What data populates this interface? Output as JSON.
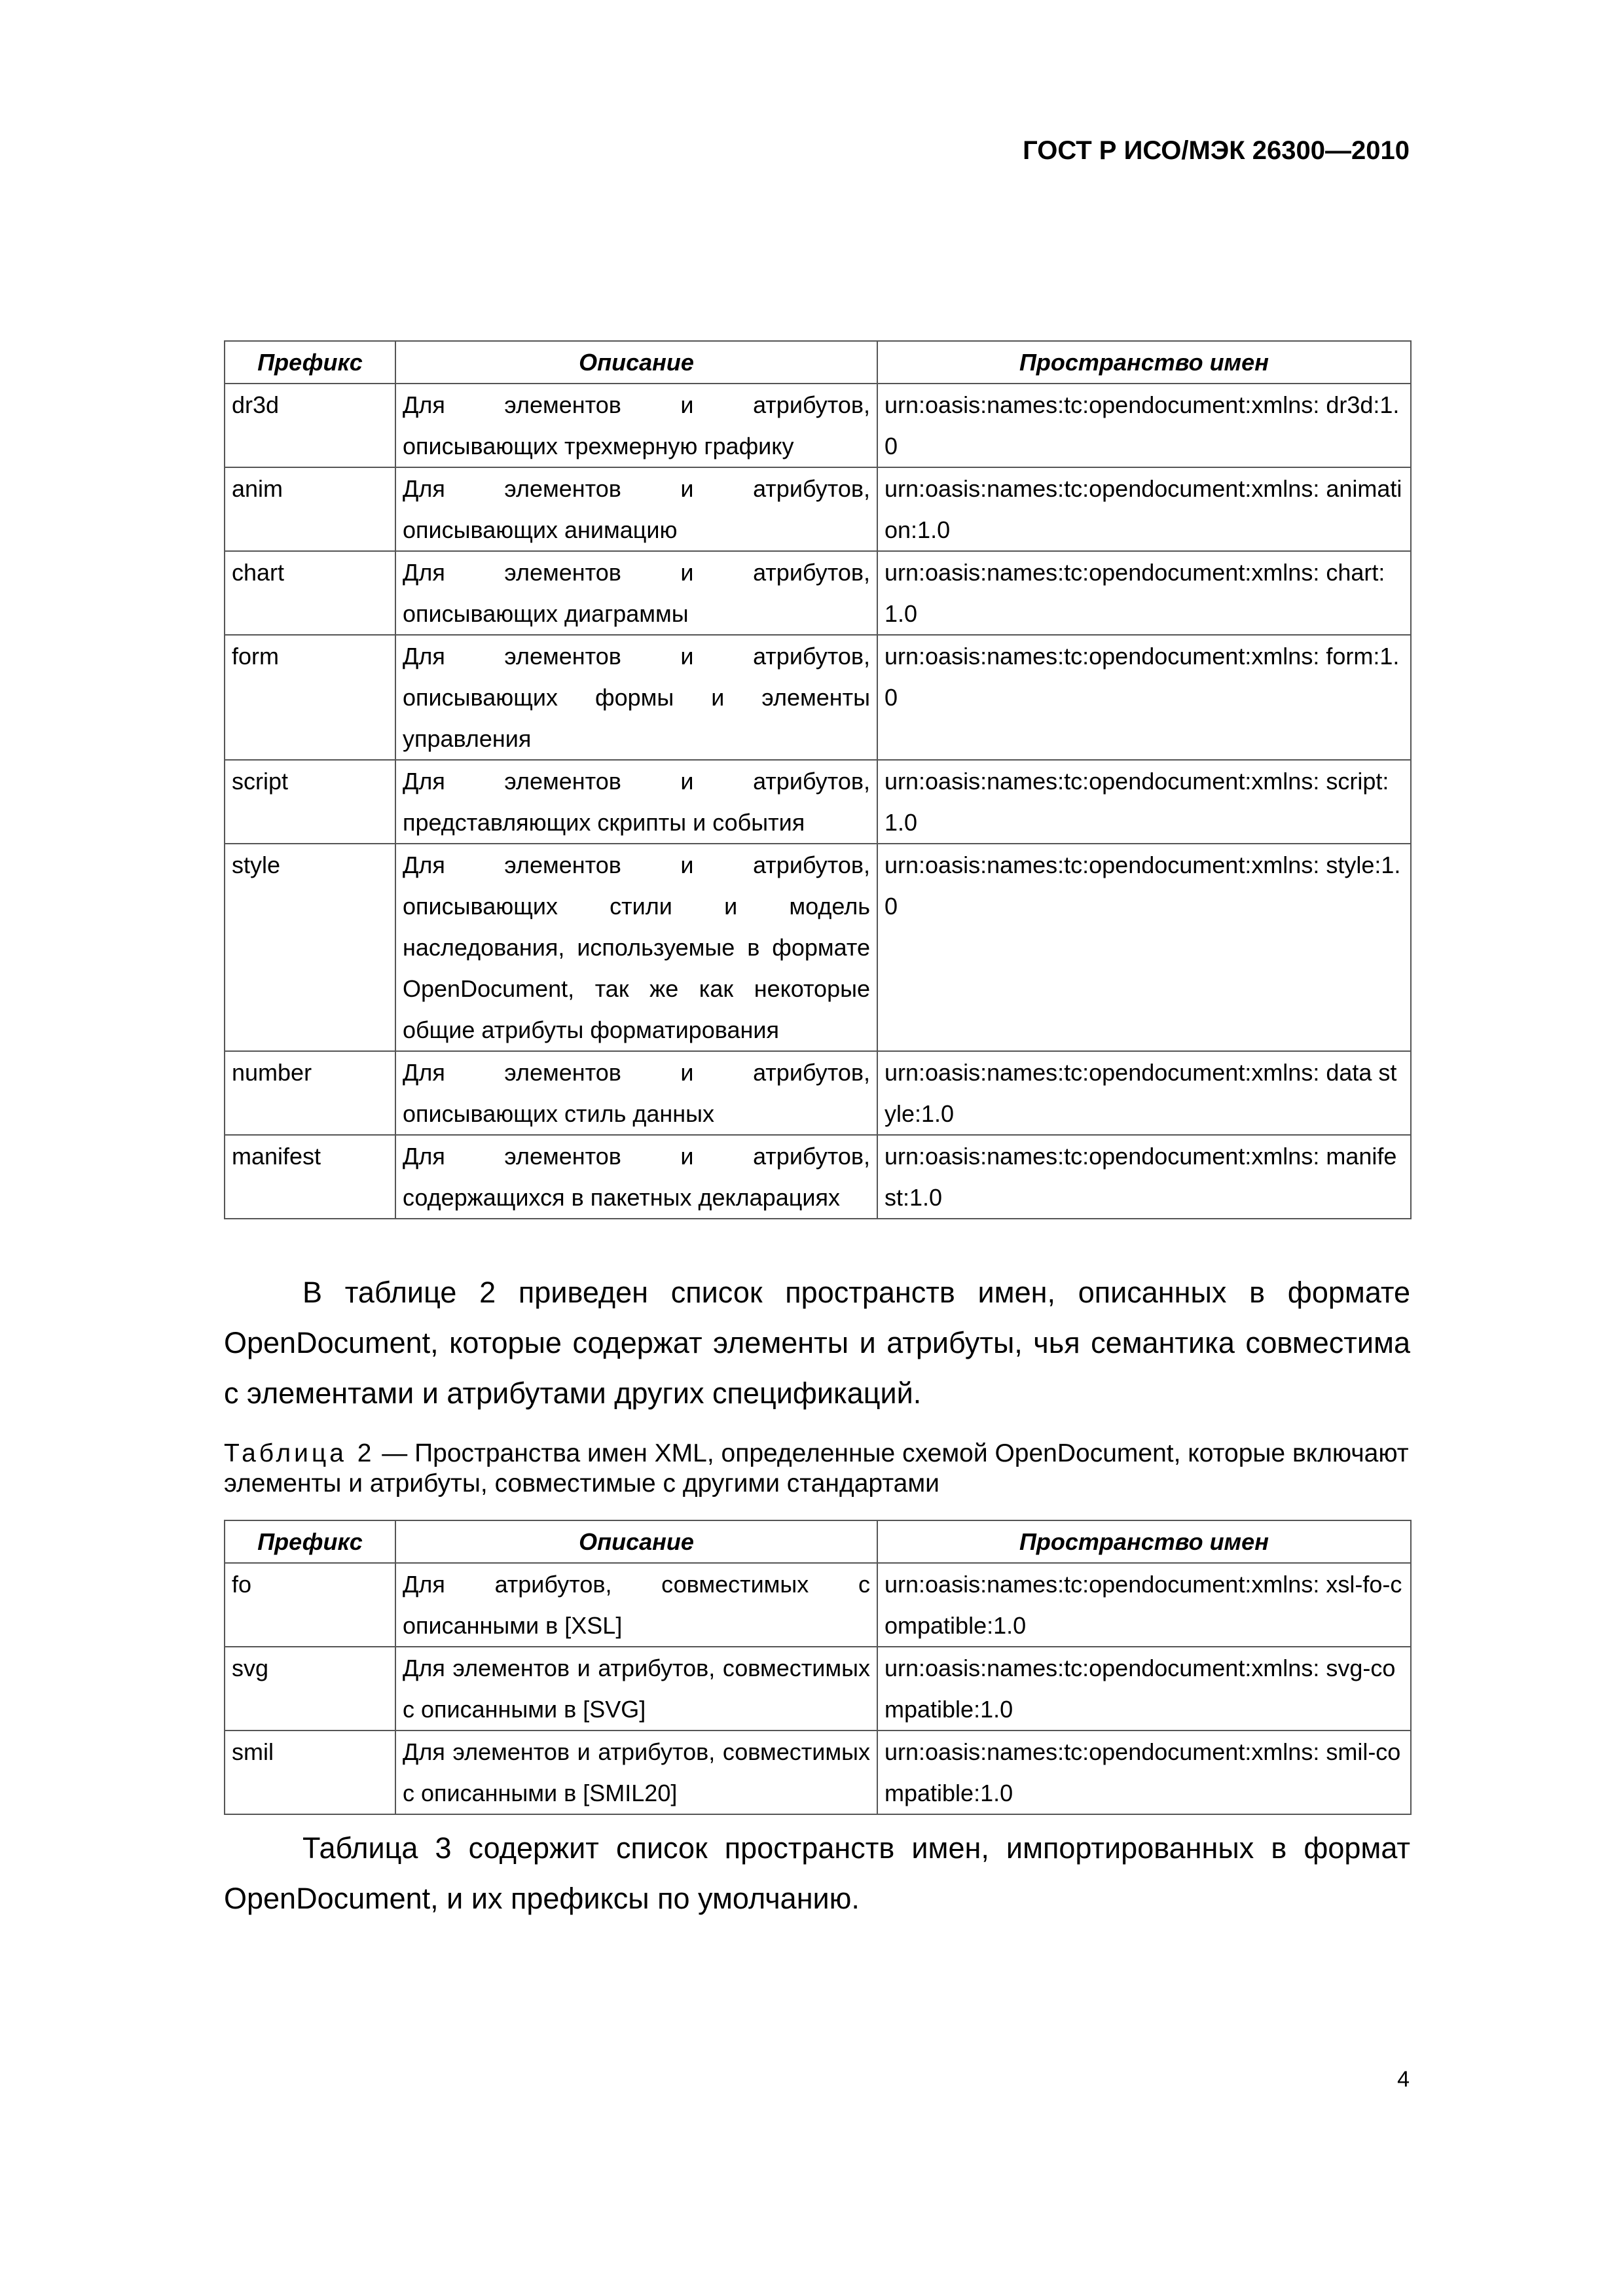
{
  "header": {
    "title": "ГОСТ Р ИСО/МЭК 26300—2010"
  },
  "table1": {
    "columns": [
      "Префикс",
      "Описание",
      "Пространство имен"
    ],
    "rows": [
      {
        "prefix": "dr3d",
        "description": "Для элементов и атрибутов, описывающих трехмерную графику",
        "namespace": "urn:oasis:names:tc:opendocument:xmlns: dr3d:1.0"
      },
      {
        "prefix": "anim",
        "description": "Для элементов и атрибутов, описывающих анимацию",
        "namespace": "urn:oasis:names:tc:opendocument:xmlns: animation:1.0"
      },
      {
        "prefix": "chart",
        "description": "Для элементов и атрибутов, описывающих диаграммы",
        "namespace": "urn:oasis:names:tc:opendocument:xmlns: chart:1.0"
      },
      {
        "prefix": "form",
        "description": "Для элементов и атрибутов, описывающих формы и элементы управления",
        "namespace": "urn:oasis:names:tc:opendocument:xmlns: form:1.0"
      },
      {
        "prefix": "script",
        "description": "Для элементов и атрибутов, представляющих скрипты и события",
        "namespace": "urn:oasis:names:tc:opendocument:xmlns: script:1.0"
      },
      {
        "prefix": "style",
        "description": "Для элементов и атрибутов, описывающих стили и модель наследования, используемые в формате OpenDocument, так же как некоторые общие атрибуты форматирования",
        "namespace": "urn:oasis:names:tc:opendocument:xmlns: style:1.0"
      },
      {
        "prefix": "number",
        "description": "Для элементов и атрибутов, описывающих стиль данных",
        "namespace": "urn:oasis:names:tc:opendocument:xmlns: data style:1.0"
      },
      {
        "prefix": "manifest",
        "description": "Для элементов и атрибутов, содержащихся в пакетных декларациях",
        "namespace": "urn:oasis:names:tc:opendocument:xmlns: manifest:1.0"
      }
    ]
  },
  "paragraph1": "В таблице 2 приведен список пространств имен, описанных в формате OpenDocument, которые содержат элементы и атрибуты, чья семантика совместима с элементами и атрибутами других спецификаций.",
  "caption2": {
    "label": "Таблица 2",
    "text": " — Пространства имен XML, определенные схемой OpenDocument, которые включают элементы и атрибуты, совместимые с другими стандартами"
  },
  "table2": {
    "columns": [
      "Префикс",
      "Описание",
      "Пространство имен"
    ],
    "rows": [
      {
        "prefix": "fo",
        "description": "Для атрибутов, совместимых с описанными в [XSL]",
        "namespace": "urn:oasis:names:tc:opendocument:xmlns: xsl-fo-compatible:1.0"
      },
      {
        "prefix": "svg",
        "description": "Для элементов и атрибутов, совместимых с описанными в [SVG]",
        "namespace": "urn:oasis:names:tc:opendocument:xmlns: svg-compatible:1.0"
      },
      {
        "prefix": "smil",
        "description": "Для элементов и атрибутов, совместимых с описанными в [SMIL20]",
        "namespace": "urn:oasis:names:tc:opendocument:xmlns: smil-compatible:1.0"
      }
    ]
  },
  "paragraph2": "Таблица 3 содержит список пространств имен, импортированных в формат OpenDocument, и их префиксы по умолчанию.",
  "page_number": "4"
}
